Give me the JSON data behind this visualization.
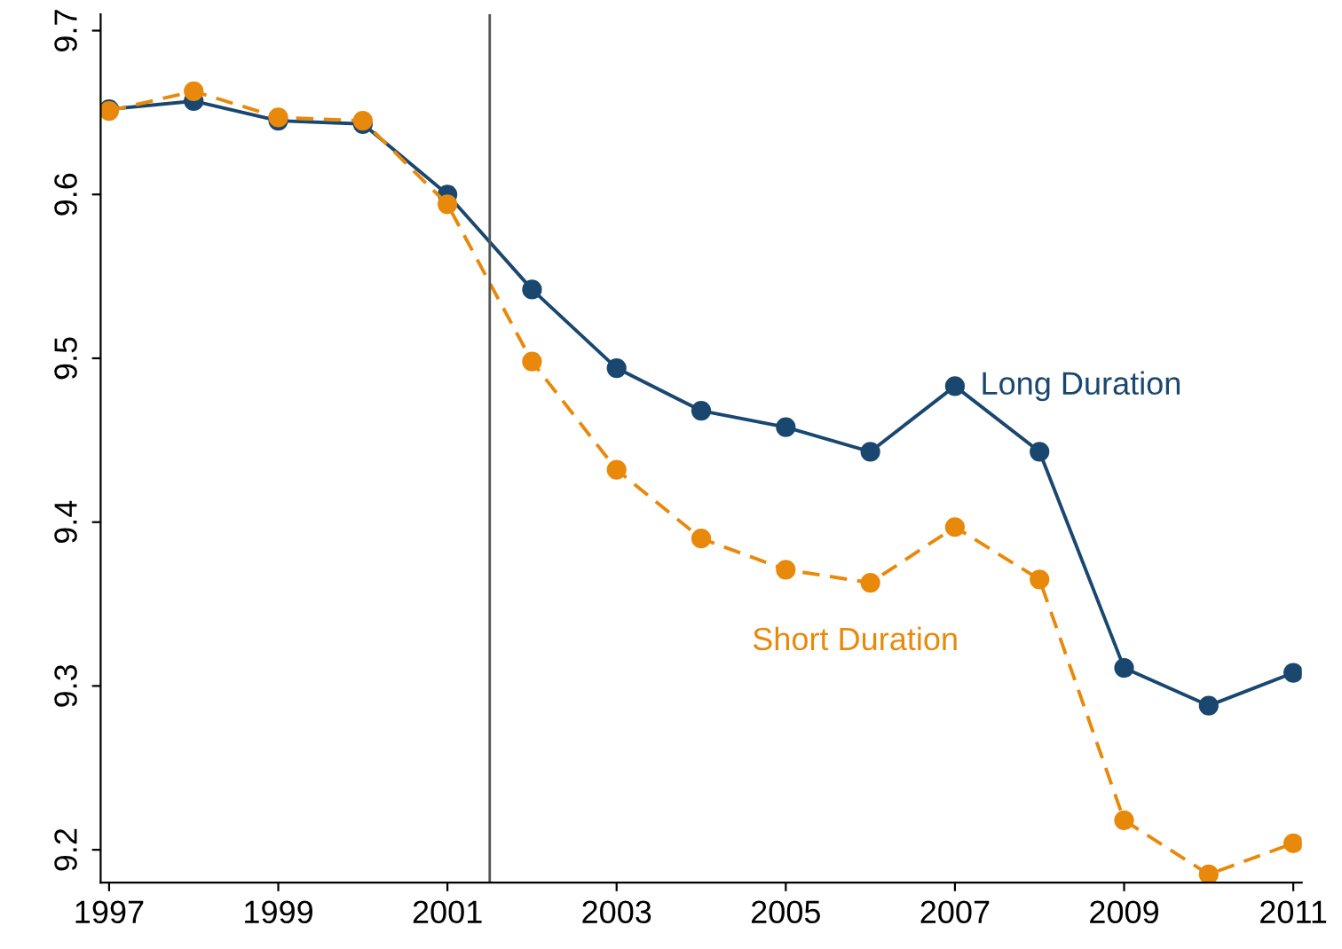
{
  "chart_data": {
    "type": "line",
    "x": [
      1997,
      1998,
      1999,
      2000,
      2001,
      2002,
      2003,
      2004,
      2005,
      2006,
      2007,
      2008,
      2009,
      2010,
      2011
    ],
    "series": [
      {
        "name": "Long Duration",
        "color": "#1a476f",
        "line_style": "solid",
        "values": [
          9.652,
          9.657,
          9.645,
          9.643,
          9.6,
          9.542,
          9.494,
          9.468,
          9.458,
          9.443,
          9.483,
          9.443,
          9.311,
          9.288,
          9.308
        ]
      },
      {
        "name": "Short Duration",
        "color": "#e8890c",
        "line_style": "dashed",
        "values": [
          9.651,
          9.663,
          9.647,
          9.645,
          9.594,
          9.498,
          9.432,
          9.39,
          9.371,
          9.363,
          9.397,
          9.365,
          9.218,
          9.185,
          9.204
        ]
      }
    ],
    "xlim": [
      1996.9,
      2011.1
    ],
    "xticks": [
      1997,
      1999,
      2001,
      2003,
      2005,
      2007,
      2009,
      2011
    ],
    "ylim": [
      9.18,
      9.71
    ],
    "yticks": [
      9.2,
      9.3,
      9.4,
      9.5,
      9.6,
      9.7
    ],
    "ref_lines": [
      {
        "axis": "x",
        "value": 2001.5,
        "color": "#555555"
      }
    ],
    "marker": "circle",
    "grid": false,
    "legend": false
  }
}
